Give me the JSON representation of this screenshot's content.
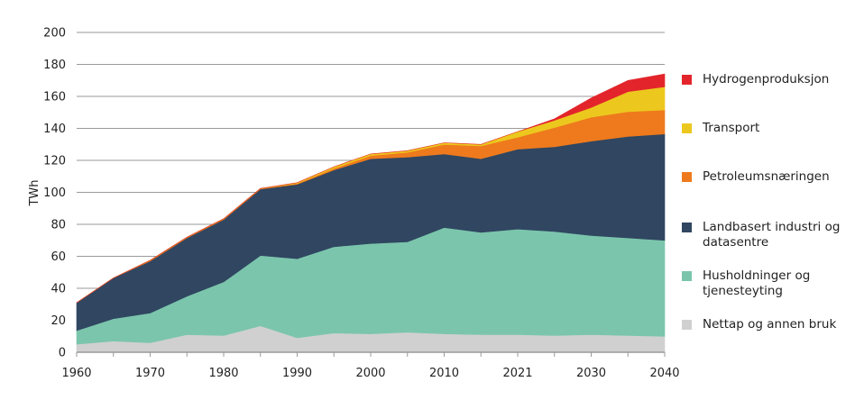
{
  "chart_data": {
    "type": "area",
    "stacked": true,
    "title": "",
    "xlabel": "",
    "ylabel": "TWh",
    "ylim": [
      0,
      200
    ],
    "yticks": [
      0,
      20,
      40,
      60,
      80,
      100,
      120,
      140,
      160,
      180,
      200
    ],
    "x": [
      "1960",
      "1965",
      "1970",
      "1975",
      "1980",
      "1985",
      "1990",
      "1995",
      "2000",
      "2005",
      "2010",
      "2015",
      "2021",
      "2025",
      "2030",
      "2035",
      "2040"
    ],
    "xtick_labels": [
      "1960",
      "1970",
      "1980",
      "1990",
      "2000",
      "2010",
      "2021",
      "2030",
      "2040"
    ],
    "grid": true,
    "legend_position": "right",
    "series": [
      {
        "name": "Nettap og annen bruk",
        "color": "#d0d0d0",
        "values": [
          5,
          7,
          6,
          11,
          10.5,
          16.5,
          9,
          12,
          11.5,
          12.5,
          11.5,
          11,
          11,
          10.5,
          11,
          10.5,
          10
        ]
      },
      {
        "name": "Husholdninger og tjenesteyting",
        "color": "#7bc5ac",
        "values": [
          8.5,
          14,
          18.5,
          24,
          33.5,
          44,
          49.5,
          54,
          56.5,
          56.5,
          66.5,
          64,
          66,
          65,
          62,
          61,
          60
        ]
      },
      {
        "name": "Landbasert industri og datasentre",
        "color": "#304661",
        "values": [
          17.5,
          25.5,
          32.5,
          36.5,
          39,
          41.5,
          46.5,
          48,
          53,
          53,
          46,
          46,
          50,
          53,
          59,
          63.5,
          66.5
        ]
      },
      {
        "name": "Petroleumsnæringen",
        "color": "#ee7a1d",
        "values": [
          0,
          0,
          0.5,
          0.5,
          0.5,
          0.5,
          0.5,
          1,
          2,
          3,
          6,
          8,
          7.5,
          12,
          15,
          15.5,
          15
        ]
      },
      {
        "name": "Transport",
        "color": "#ecc81e",
        "values": [
          0,
          0,
          0,
          0,
          0,
          0,
          0.5,
          1,
          1,
          1,
          1,
          1,
          3.5,
          4.5,
          6,
          12.5,
          14.5
        ]
      },
      {
        "name": "Hydrogenproduksjon",
        "color": "#e3252b",
        "values": [
          0,
          0,
          0,
          0,
          0,
          0,
          0,
          0,
          0,
          0,
          0,
          0,
          0,
          1,
          6,
          7,
          8
        ]
      }
    ]
  },
  "legend": [
    {
      "label": "Hydrogenproduksjon",
      "color": "#e3252b"
    },
    {
      "label": "Transport",
      "color": "#ecc81e"
    },
    {
      "label": "Petroleumsnæringen",
      "color": "#ee7a1d"
    },
    {
      "label": "Landbasert industri og datasentre",
      "color": "#304661"
    },
    {
      "label": "Husholdninger og tjenesteyting",
      "color": "#7bc5ac"
    },
    {
      "label": "Nettap og annen bruk",
      "color": "#d0d0d0"
    }
  ]
}
